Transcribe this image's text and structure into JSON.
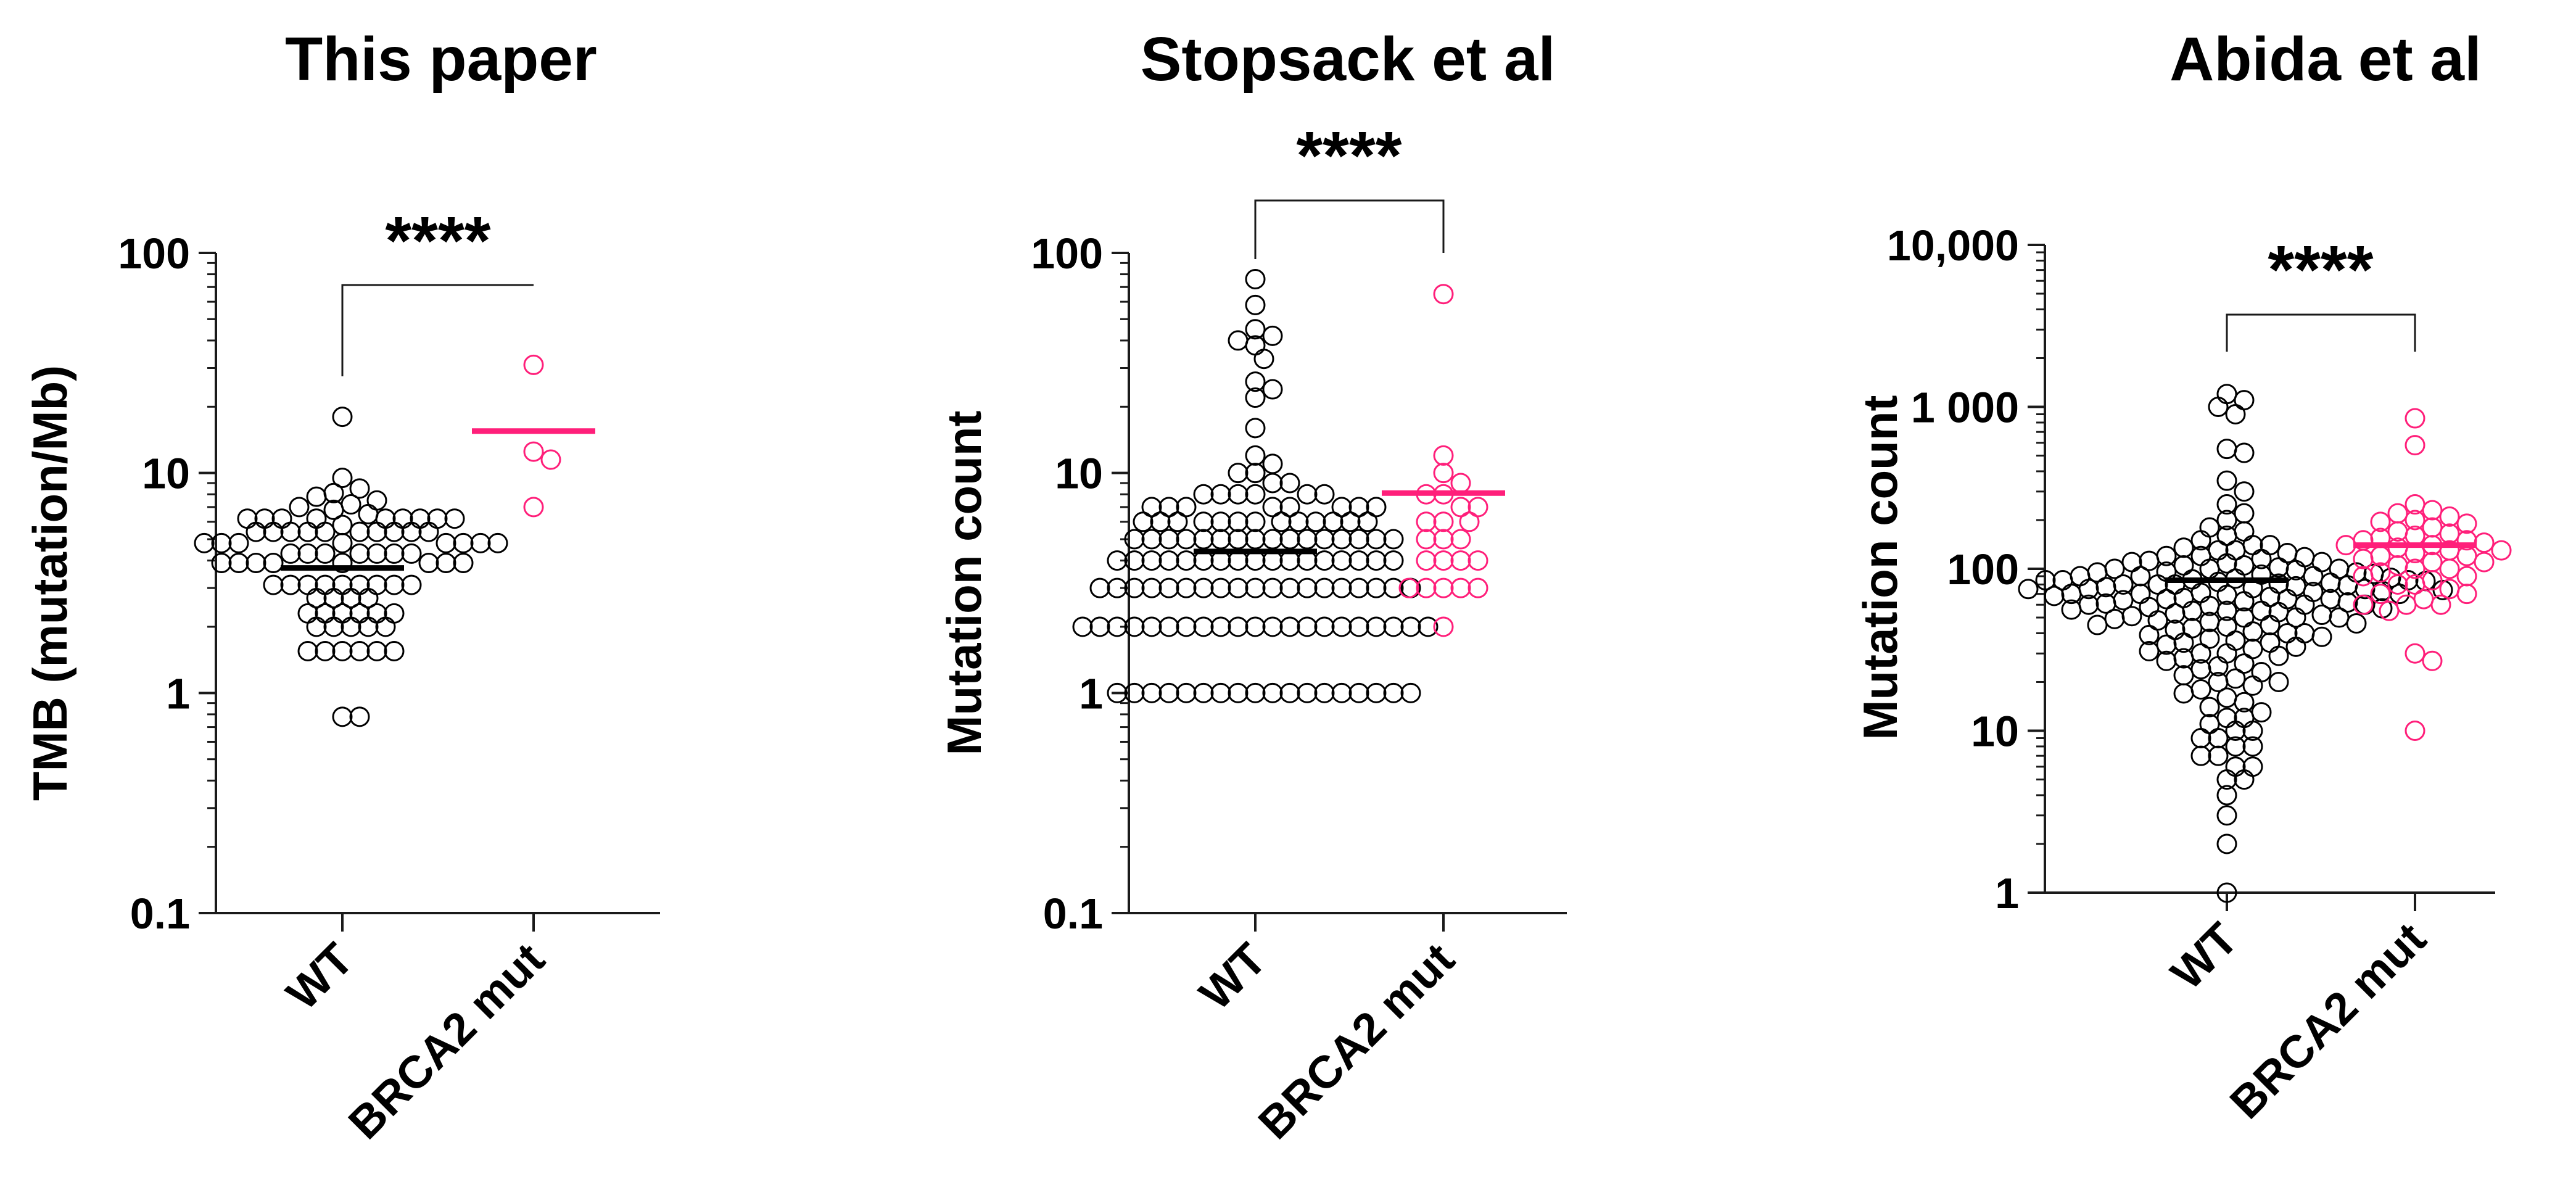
{
  "colors": {
    "wt": "#000000",
    "brca2": "#FF1F7A",
    "axis": "#1a1a1a"
  },
  "chart_data": [
    {
      "type": "scatter",
      "title": "This paper",
      "ylabel": "TMB (mutation/Mb)",
      "yscale": "log",
      "ylim": [
        0.1,
        100
      ],
      "yticks": [
        0.1,
        1,
        10,
        100
      ],
      "ytick_labels": [
        "0.1",
        "1",
        "10",
        "100"
      ],
      "categories": [
        "WT",
        "BRCA2 mut"
      ],
      "significance": "****",
      "series": [
        {
          "category": "WT",
          "mean": 3.7,
          "values": [
            18,
            9.5,
            8.5,
            8.1,
            7.8,
            7.5,
            7.2,
            7.0,
            6.8,
            6.5,
            6.2,
            6.2,
            6.2,
            6.2,
            6.2,
            6.2,
            6.2,
            6.2,
            6.2,
            5.8,
            5.4,
            5.4,
            5.4,
            5.4,
            5.4,
            5.4,
            5.4,
            5.4,
            5.4,
            5.4,
            4.8,
            4.8,
            4.8,
            4.8,
            4.8,
            4.8,
            4.8,
            4.8,
            4.3,
            4.3,
            4.3,
            4.3,
            4.3,
            4.3,
            4.3,
            3.9,
            3.9,
            3.9,
            3.9,
            3.9,
            3.9,
            3.9,
            3.9,
            3.1,
            3.1,
            3.1,
            3.1,
            3.1,
            3.1,
            3.1,
            3.1,
            3.1,
            2.7,
            2.7,
            2.7,
            2.7,
            2.3,
            2.3,
            2.3,
            2.3,
            2.3,
            2.3,
            2.0,
            2.0,
            2.0,
            2.0,
            2.0,
            1.55,
            1.55,
            1.55,
            1.55,
            1.55,
            1.55,
            0.78,
            0.78
          ]
        },
        {
          "category": "BRCA2 mut",
          "mean": 15.5,
          "values": [
            31,
            12.5,
            11.5,
            7.0
          ]
        }
      ]
    },
    {
      "type": "scatter",
      "title": "Stopsack et al",
      "ylabel": "Mutation count",
      "yscale": "log",
      "ylim": [
        0.1,
        100
      ],
      "yticks": [
        0.1,
        1,
        10,
        100
      ],
      "ytick_labels": [
        "0.1",
        "1",
        "10",
        "100"
      ],
      "categories": [
        "WT",
        "BRCA2 mut"
      ],
      "significance": "****",
      "series": [
        {
          "category": "WT",
          "mean": 4.4,
          "values": [
            76,
            58,
            45,
            42,
            40,
            38,
            33,
            26,
            24,
            22,
            16,
            12,
            11,
            10,
            10,
            9,
            9,
            8,
            8,
            8,
            8,
            8,
            8,
            7,
            7,
            7,
            7,
            7,
            7,
            7,
            7,
            6,
            6,
            6,
            6,
            6,
            6,
            6,
            6,
            6,
            6,
            6,
            6,
            6,
            5,
            5,
            5,
            5,
            5,
            5,
            5,
            5,
            5,
            5,
            5,
            5,
            5,
            5,
            5,
            5,
            4,
            4,
            4,
            4,
            4,
            4,
            4,
            4,
            4,
            4,
            4,
            4,
            4,
            4,
            4,
            4,
            4,
            3,
            3,
            3,
            3,
            3,
            3,
            3,
            3,
            3,
            3,
            3,
            3,
            3,
            3,
            3,
            3,
            3,
            3,
            3,
            2,
            2,
            2,
            2,
            2,
            2,
            2,
            2,
            2,
            2,
            2,
            2,
            2,
            2,
            2,
            2,
            2,
            2,
            2,
            2,
            2,
            1,
            1,
            1,
            1,
            1,
            1,
            1,
            1,
            1,
            1,
            1,
            1,
            1,
            1,
            1,
            1,
            1,
            1
          ]
        },
        {
          "category": "BRCA2 mut",
          "mean": 8.1,
          "values": [
            65,
            12,
            10,
            9,
            8,
            8,
            7,
            7,
            6,
            6,
            6,
            5,
            5,
            5,
            4,
            4,
            4,
            4,
            3,
            3,
            3,
            3,
            3,
            2
          ]
        }
      ]
    },
    {
      "type": "scatter",
      "title": "Abida et al",
      "ylabel": "Mutation count",
      "yscale": "log",
      "ylim": [
        1,
        10000
      ],
      "yticks": [
        1,
        10,
        100,
        1000,
        10000
      ],
      "ytick_labels": [
        "1",
        "10",
        "100",
        "1 000",
        "10,000"
      ],
      "categories": [
        "WT",
        "BRCA2 mut"
      ],
      "significance": "****",
      "series": [
        {
          "category": "WT",
          "mean": 85,
          "values": [
            1200,
            1100,
            1000,
            900,
            550,
            520,
            350,
            300,
            250,
            220,
            200,
            180,
            170,
            160,
            150,
            140,
            140,
            135,
            130,
            130,
            125,
            120,
            120,
            118,
            115,
            112,
            110,
            110,
            108,
            105,
            105,
            102,
            100,
            100,
            100,
            98,
            96,
            95,
            95,
            93,
            92,
            90,
            90,
            90,
            88,
            87,
            86,
            85,
            85,
            85,
            84,
            83,
            82,
            81,
            80,
            80,
            80,
            79,
            78,
            77,
            76,
            75,
            75,
            75,
            74,
            73,
            72,
            71,
            70,
            70,
            70,
            69,
            68,
            67,
            66,
            65,
            65,
            65,
            64,
            63,
            62,
            61,
            60,
            60,
            60,
            59,
            58,
            57,
            56,
            55,
            55,
            55,
            54,
            53,
            52,
            51,
            50,
            50,
            50,
            49,
            48,
            47,
            46,
            45,
            45,
            44,
            43,
            42,
            41,
            40,
            40,
            39,
            38,
            37,
            36,
            35,
            35,
            34,
            33,
            32,
            31,
            30,
            30,
            29,
            28,
            27,
            26,
            25,
            24,
            23,
            22,
            21,
            20,
            20,
            19,
            18,
            17,
            16,
            15,
            14,
            13,
            12,
            12,
            11,
            10,
            10,
            9,
            9,
            8,
            8,
            7,
            7,
            6,
            6,
            5,
            5,
            4,
            3,
            2,
            1
          ]
        },
        {
          "category": "BRCA2 mut",
          "mean": 140,
          "values": [
            850,
            580,
            250,
            230,
            220,
            210,
            200,
            195,
            190,
            180,
            170,
            165,
            160,
            155,
            150,
            150,
            145,
            140,
            140,
            135,
            130,
            130,
            125,
            120,
            120,
            115,
            110,
            110,
            105,
            100,
            100,
            95,
            90,
            90,
            85,
            80,
            80,
            75,
            70,
            70,
            65,
            60,
            60,
            60,
            55,
            30,
            27,
            10
          ]
        }
      ]
    }
  ]
}
